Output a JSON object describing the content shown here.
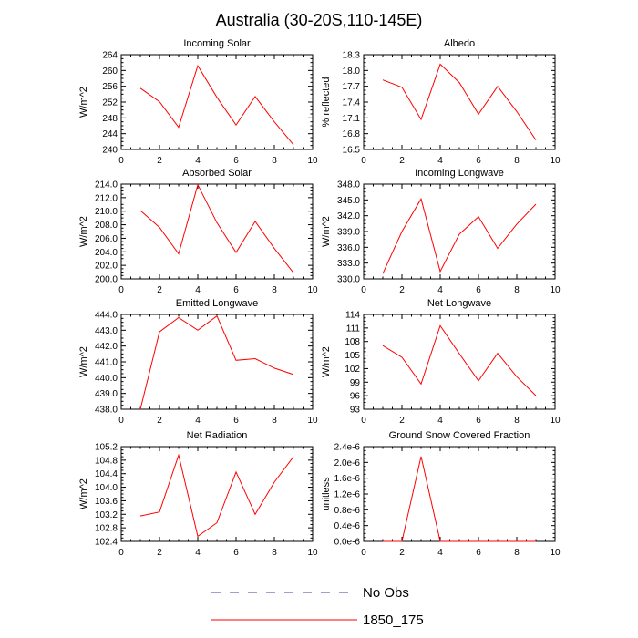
{
  "title": "Australia (30-20S,110-145E)",
  "colors": {
    "model": "#ff0000",
    "obs": "#4040a0",
    "axis": "#000000"
  },
  "legend": [
    {
      "label": "No Obs",
      "style": "dashed"
    },
    {
      "label": "1850_175",
      "style": "solid"
    }
  ],
  "chart_data": [
    {
      "type": "line",
      "title": "Incoming Solar",
      "ylabel": "W/m^2",
      "xlim": [
        0,
        10
      ],
      "ylim": [
        240,
        264
      ],
      "yticks": [
        "240",
        "244",
        "248",
        "252",
        "256",
        "260",
        "264"
      ],
      "xticks": [
        "0",
        "2",
        "4",
        "6",
        "8",
        "10"
      ],
      "series": [
        {
          "name": "1850_175",
          "x": [
            1,
            2,
            3,
            4,
            5,
            6,
            7,
            8,
            9
          ],
          "values": [
            255.5,
            252.1,
            245.6,
            261.2,
            253.2,
            246.2,
            253.4,
            247.0,
            241.2
          ]
        }
      ]
    },
    {
      "type": "line",
      "title": "Albedo",
      "ylabel": "% reflected",
      "xlim": [
        0,
        10
      ],
      "ylim": [
        16.5,
        18.3
      ],
      "yticks": [
        "16.5",
        "16.8",
        "17.1",
        "17.4",
        "17.7",
        "18.0",
        "18.3"
      ],
      "xticks": [
        "0",
        "2",
        "4",
        "6",
        "8",
        "10"
      ],
      "series": [
        {
          "name": "1850_175",
          "x": [
            1,
            2,
            3,
            4,
            5,
            6,
            7,
            8,
            9
          ],
          "values": [
            17.82,
            17.68,
            17.07,
            18.12,
            17.77,
            17.17,
            17.7,
            17.22,
            16.68
          ]
        }
      ]
    },
    {
      "type": "line",
      "title": "Absorbed Solar",
      "ylabel": "W/m^2",
      "xlim": [
        0,
        10
      ],
      "ylim": [
        200,
        214
      ],
      "yticks": [
        "200.0",
        "202.0",
        "204.0",
        "206.0",
        "208.0",
        "210.0",
        "212.0",
        "214.0"
      ],
      "xticks": [
        "0",
        "2",
        "4",
        "6",
        "8",
        "10"
      ],
      "series": [
        {
          "name": "1850_175",
          "x": [
            1,
            2,
            3,
            4,
            5,
            6,
            7,
            8,
            9
          ],
          "values": [
            210.1,
            207.6,
            203.7,
            213.9,
            208.3,
            203.9,
            208.5,
            204.5,
            200.9
          ]
        }
      ]
    },
    {
      "type": "line",
      "title": "Incoming Longwave",
      "ylabel": "W/m^2",
      "xlim": [
        0,
        10
      ],
      "ylim": [
        330,
        348
      ],
      "yticks": [
        "330.0",
        "333.0",
        "336.0",
        "339.0",
        "342.0",
        "345.0",
        "348.0"
      ],
      "xticks": [
        "0",
        "2",
        "4",
        "6",
        "8",
        "10"
      ],
      "series": [
        {
          "name": "1850_175",
          "x": [
            1,
            2,
            3,
            4,
            5,
            6,
            7,
            8,
            9
          ],
          "values": [
            331.0,
            339.0,
            345.2,
            331.4,
            338.5,
            341.8,
            335.8,
            340.4,
            344.2
          ]
        }
      ]
    },
    {
      "type": "line",
      "title": "Emitted Longwave",
      "ylabel": "W/m^2",
      "xlim": [
        0,
        10
      ],
      "ylim": [
        438,
        444
      ],
      "yticks": [
        "438.0",
        "439.0",
        "440.0",
        "441.0",
        "442.0",
        "443.0",
        "444.0"
      ],
      "xticks": [
        "0",
        "2",
        "4",
        "6",
        "8",
        "10"
      ],
      "series": [
        {
          "name": "1850_175",
          "x": [
            1,
            2,
            3,
            4,
            5,
            6,
            7,
            8,
            9
          ],
          "values": [
            438.0,
            442.9,
            443.8,
            443.0,
            443.9,
            441.1,
            441.2,
            440.6,
            440.2
          ]
        }
      ]
    },
    {
      "type": "line",
      "title": "Net Longwave",
      "ylabel": "W/m^2",
      "xlim": [
        0,
        10
      ],
      "ylim": [
        93,
        114
      ],
      "yticks": [
        "93",
        "96",
        "99",
        "102",
        "105",
        "108",
        "111",
        "114"
      ],
      "xticks": [
        "0",
        "2",
        "4",
        "6",
        "8",
        "10"
      ],
      "series": [
        {
          "name": "1850_175",
          "x": [
            1,
            2,
            3,
            4,
            5,
            6,
            7,
            8,
            9
          ],
          "values": [
            107.1,
            104.5,
            98.6,
            111.5,
            105.3,
            99.3,
            105.4,
            100.2,
            96.0
          ]
        }
      ]
    },
    {
      "type": "line",
      "title": "Net Radiation",
      "ylabel": "W/m^2",
      "xlim": [
        0,
        10
      ],
      "ylim": [
        102.4,
        105.2
      ],
      "yticks": [
        "102.4",
        "102.8",
        "103.2",
        "103.6",
        "104.0",
        "104.4",
        "104.8",
        "105.2"
      ],
      "xticks": [
        "0",
        "2",
        "4",
        "6",
        "8",
        "10"
      ],
      "series": [
        {
          "name": "1850_175",
          "x": [
            1,
            2,
            3,
            4,
            5,
            6,
            7,
            8,
            9
          ],
          "values": [
            103.15,
            103.27,
            104.95,
            102.55,
            102.95,
            104.45,
            103.2,
            104.15,
            104.9
          ]
        }
      ]
    },
    {
      "type": "line",
      "title": "Ground Snow Covered Fraction",
      "ylabel": "unitless",
      "xlim": [
        0,
        10
      ],
      "ylim": [
        0,
        2.4e-06
      ],
      "yticks": [
        "0.0e-6",
        "0.4e-6",
        "0.8e-6",
        "1.2e-6",
        "1.6e-6",
        "2.0e-6",
        "2.4e-6"
      ],
      "xticks": [
        "0",
        "2",
        "4",
        "6",
        "8",
        "10"
      ],
      "series": [
        {
          "name": "1850_175",
          "x": [
            1,
            2,
            3,
            4,
            5,
            6,
            7,
            8,
            9
          ],
          "values": [
            0,
            0,
            2.15e-06,
            0,
            0,
            0,
            0,
            0,
            0
          ]
        }
      ]
    }
  ]
}
